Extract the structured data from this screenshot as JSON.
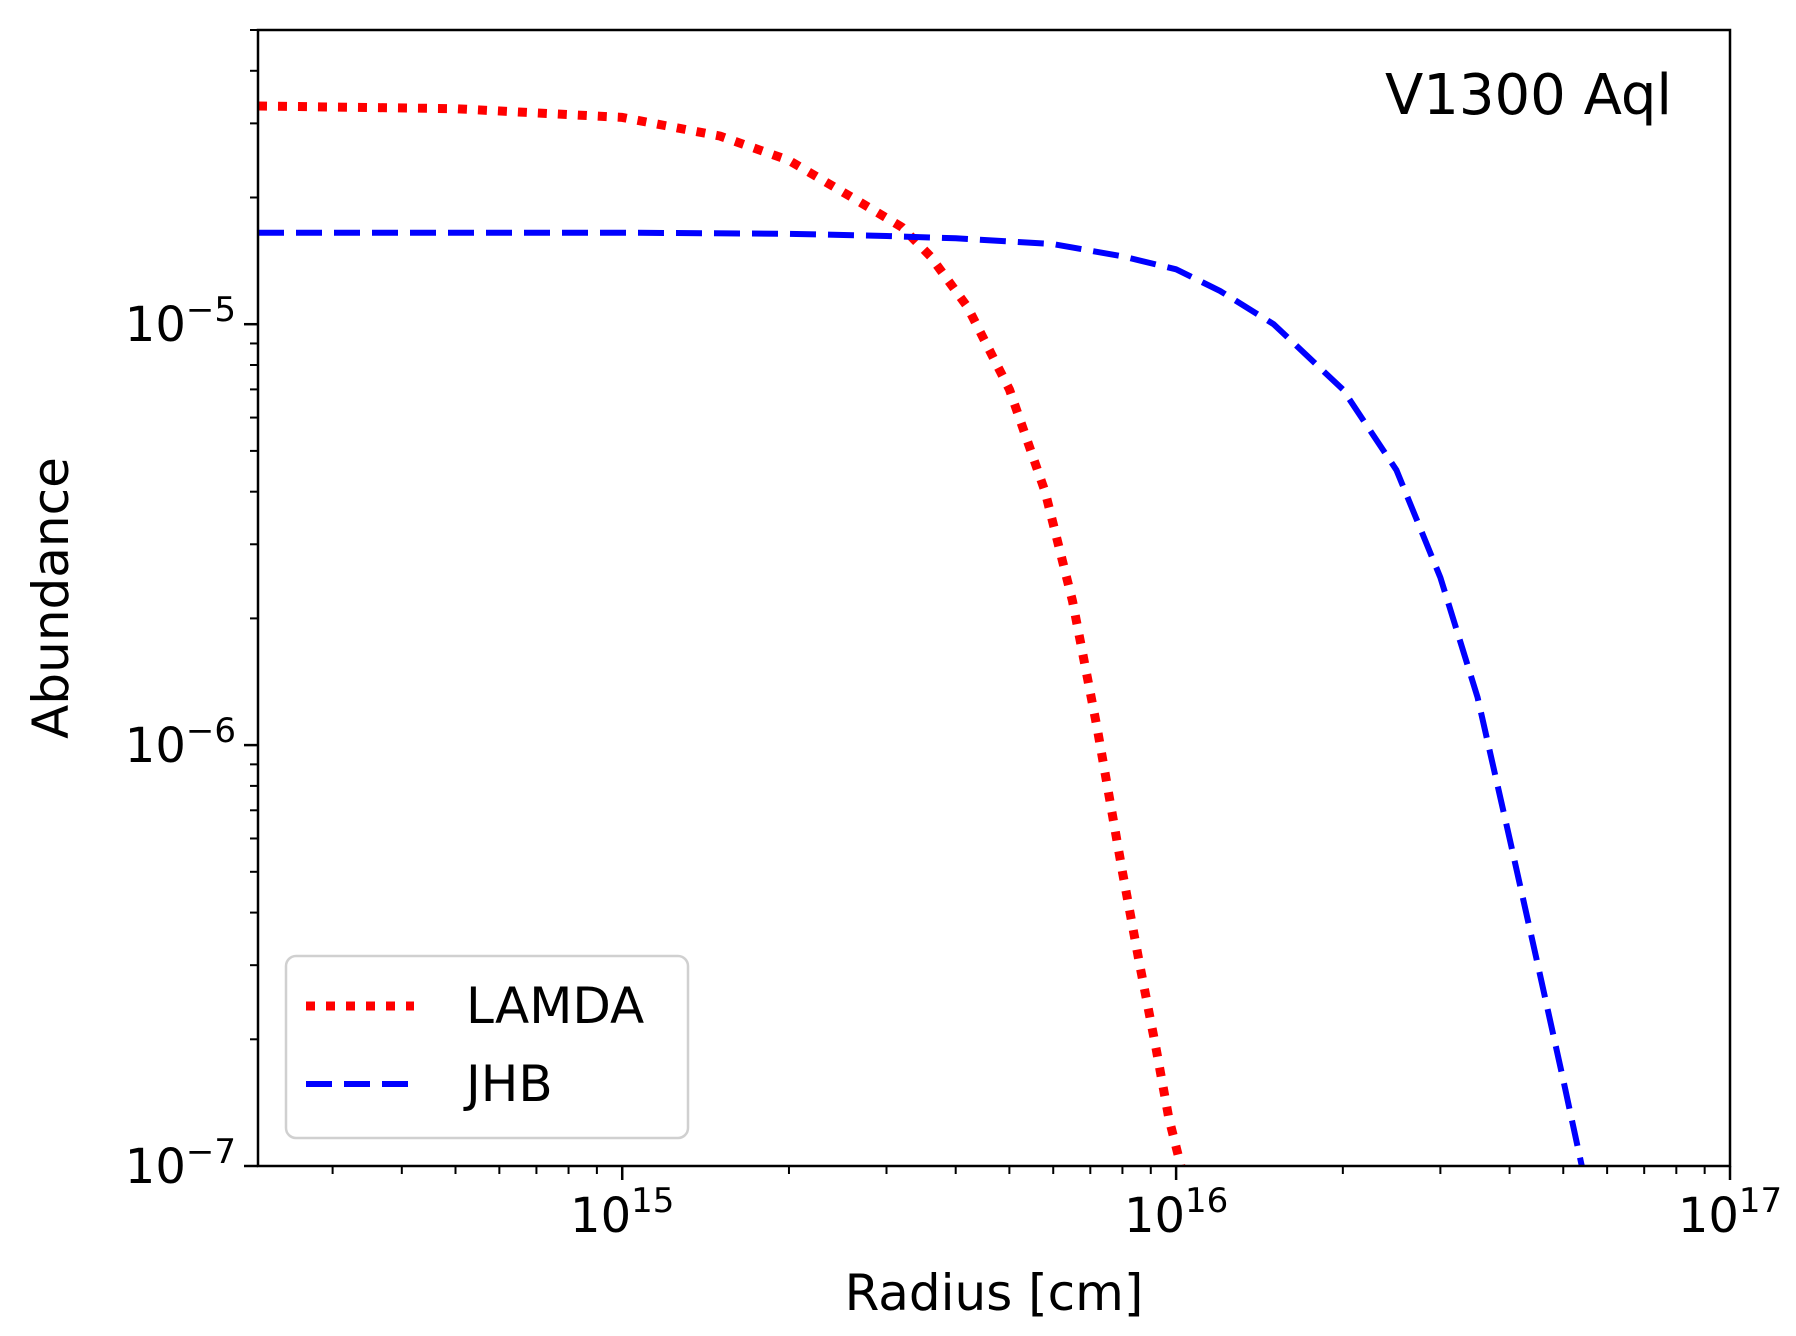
{
  "chart_data": {
    "type": "line",
    "title": "",
    "annotation": "V1300 Aql",
    "xlabel": "Radius [cm]",
    "ylabel": "Abundance",
    "xscale": "log",
    "yscale": "log",
    "xlim": [
      220000000000000.0,
      1e+17
    ],
    "ylim": [
      1e-07,
      5e-05
    ],
    "x_ticks": [
      {
        "value": 1000000000000000.0,
        "base": "10",
        "exp": "15"
      },
      {
        "value": 1e+16,
        "base": "10",
        "exp": "16"
      },
      {
        "value": 1e+17,
        "base": "10",
        "exp": "17"
      }
    ],
    "y_ticks": [
      {
        "value": 1e-07,
        "base": "10",
        "exp": "−7"
      },
      {
        "value": 1e-06,
        "base": "10",
        "exp": "−6"
      },
      {
        "value": 1e-05,
        "base": "10",
        "exp": "−5"
      }
    ],
    "legend_position": "lower-left",
    "series": [
      {
        "name": "LAMDA",
        "color": "#ff0000",
        "style": "dotted",
        "x": [
          220000000000000.0,
          500000000000000.0,
          1000000000000000.0,
          1500000000000000.0,
          2000000000000000.0,
          2600000000000000.0,
          3200000000000000.0,
          3600000000000000.0,
          4200000000000000.0,
          5000000000000000.0,
          5800000000000000.0,
          6500000000000000.0,
          7200000000000000.0,
          8000000000000000.0,
          8600000000000000.0,
          9200000000000000.0,
          9700000000000000.0,
          1.02e+16
        ],
        "y": [
          3.3e-05,
          3.25e-05,
          3.1e-05,
          2.8e-05,
          2.45e-05,
          2e-05,
          1.7e-05,
          1.45e-05,
          1.1e-05,
          7e-06,
          4e-06,
          2.2e-06,
          1.1e-06,
          5e-07,
          3e-07,
          1.9e-07,
          1.3e-07,
          1e-07
        ]
      },
      {
        "name": "JHB",
        "color": "#0000ff",
        "style": "dashed",
        "x": [
          220000000000000.0,
          1000000000000000.0,
          2000000000000000.0,
          3000000000000000.0,
          4000000000000000.0,
          6000000000000000.0,
          8000000000000000.0,
          1e+16,
          1.2e+16,
          1.5e+16,
          2e+16,
          2.5e+16,
          3e+16,
          3.5e+16,
          4e+16,
          4.5e+16,
          5e+16,
          5.4e+16
        ],
        "y": [
          1.65e-05,
          1.65e-05,
          1.64e-05,
          1.62e-05,
          1.6e-05,
          1.55e-05,
          1.45e-05,
          1.35e-05,
          1.2e-05,
          1e-05,
          7e-06,
          4.5e-06,
          2.5e-06,
          1.3e-06,
          6e-07,
          3e-07,
          1.6e-07,
          1e-07
        ]
      }
    ]
  }
}
